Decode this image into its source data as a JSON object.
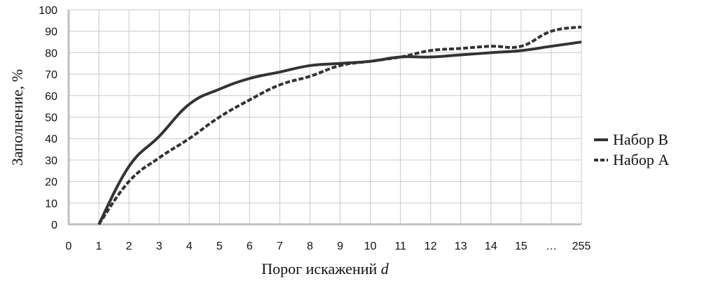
{
  "chart_data": {
    "type": "line",
    "xlabel": "Порог искажений",
    "xlabel_var": "d",
    "ylabel": "Заполнение, %",
    "categories": [
      "0",
      "1",
      "2",
      "3",
      "4",
      "5",
      "6",
      "7",
      "8",
      "9",
      "10",
      "11",
      "12",
      "13",
      "14",
      "15",
      "…",
      "255"
    ],
    "ylim": [
      0,
      100
    ],
    "yticks": [
      0,
      10,
      20,
      30,
      40,
      50,
      60,
      70,
      80,
      90,
      100
    ],
    "grid": true,
    "legend_position": "right",
    "series": [
      {
        "name": "Набор B",
        "style": "solid",
        "color": "#333333",
        "points": [
          [
            1,
            0
          ],
          [
            2,
            27
          ],
          [
            3,
            41
          ],
          [
            4,
            56
          ],
          [
            5,
            63
          ],
          [
            6,
            68
          ],
          [
            7,
            71
          ],
          [
            8,
            74
          ],
          [
            9,
            75
          ],
          [
            10,
            76
          ],
          [
            11,
            78
          ],
          [
            12,
            78
          ],
          [
            13,
            79
          ],
          [
            14,
            80
          ],
          [
            15,
            81
          ],
          [
            16,
            83
          ],
          [
            17,
            85
          ]
        ]
      },
      {
        "name": "Набор A",
        "style": "dashed",
        "color": "#333333",
        "points": [
          [
            1,
            0
          ],
          [
            2,
            20
          ],
          [
            3,
            31
          ],
          [
            4,
            40
          ],
          [
            5,
            50
          ],
          [
            6,
            58
          ],
          [
            7,
            65
          ],
          [
            8,
            69
          ],
          [
            9,
            74
          ],
          [
            10,
            76
          ],
          [
            11,
            78
          ],
          [
            12,
            81
          ],
          [
            13,
            82
          ],
          [
            14,
            83
          ],
          [
            15,
            83
          ],
          [
            16,
            90
          ],
          [
            17,
            92
          ]
        ]
      }
    ]
  }
}
